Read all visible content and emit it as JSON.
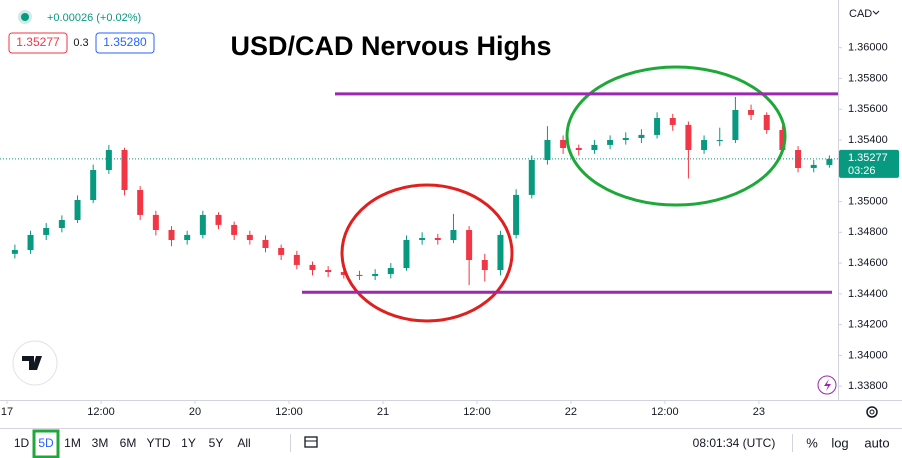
{
  "chart_data": {
    "type": "candlestick",
    "title": "USD/CAD Nervous Highs",
    "x": [
      1,
      3,
      5,
      7,
      9,
      11,
      13,
      15,
      17,
      19,
      21,
      23,
      25,
      27,
      29,
      31,
      33,
      35,
      37,
      39,
      41,
      43,
      45,
      47,
      49,
      51,
      53,
      55,
      57,
      59,
      61,
      63,
      65,
      67,
      69,
      71,
      73,
      75,
      77,
      79,
      81,
      83,
      85,
      87,
      89,
      91,
      93,
      95,
      97,
      99,
      101,
      103,
      105
    ],
    "open": [
      1.3466,
      1.34685,
      1.34783,
      1.34828,
      1.3488,
      1.3501,
      1.35205,
      1.35335,
      1.35075,
      1.34913,
      1.34815,
      1.3475,
      1.34783,
      1.34913,
      1.34848,
      1.34783,
      1.3475,
      1.34698,
      1.34653,
      1.34588,
      1.34555,
      1.34542,
      1.34523,
      1.34516,
      1.34529,
      1.34568,
      1.3475,
      1.34763,
      1.3475,
      1.34815,
      1.3462,
      1.34555,
      1.34783,
      1.35043,
      1.3527,
      1.354,
      1.35348,
      1.35335,
      1.35368,
      1.354,
      1.35413,
      1.35433,
      1.35543,
      1.35498,
      1.35335,
      1.354,
      1.354,
      1.35595,
      1.35563,
      1.35465,
      1.35335,
      1.35218,
      1.35238
    ],
    "high": [
      1.3472,
      1.3481,
      1.3486,
      1.3491,
      1.3504,
      1.3524,
      1.35368,
      1.3535,
      1.351,
      1.3494,
      1.3484,
      1.3481,
      1.3494,
      1.3493,
      1.3487,
      1.3481,
      1.3478,
      1.3472,
      1.3468,
      1.3461,
      1.3458,
      1.3457,
      1.3455,
      1.3456,
      1.346,
      1.3478,
      1.348,
      1.3479,
      1.3492,
      1.3484,
      1.3466,
      1.3481,
      1.3508,
      1.353,
      1.3549,
      1.3543,
      1.3537,
      1.354,
      1.3543,
      1.3545,
      1.3547,
      1.3558,
      1.3557,
      1.3552,
      1.3543,
      1.3548,
      1.3568,
      1.3563,
      1.3558,
      1.3549,
      1.3536,
      1.3527,
      1.353
    ],
    "low": [
      1.3463,
      1.3466,
      1.3475,
      1.348,
      1.3486,
      1.3499,
      1.3518,
      1.3504,
      1.3488,
      1.3478,
      1.3471,
      1.3472,
      1.3476,
      1.3482,
      1.3475,
      1.3472,
      1.3467,
      1.3462,
      1.3456,
      1.3452,
      1.3451,
      1.345,
      1.3449,
      1.3449,
      1.345,
      1.3455,
      1.3472,
      1.3472,
      1.3473,
      1.34457,
      1.3448,
      1.3452,
      1.3476,
      1.3502,
      1.3524,
      1.3531,
      1.353,
      1.3531,
      1.3534,
      1.3537,
      1.3538,
      1.3541,
      1.3546,
      1.3515,
      1.3531,
      1.3536,
      1.3538,
      1.3553,
      1.3544,
      1.3531,
      1.3519,
      1.3519,
      1.3522
    ],
    "close": [
      1.34685,
      1.34783,
      1.34828,
      1.3488,
      1.3501,
      1.35205,
      1.35335,
      1.35075,
      1.34913,
      1.34815,
      1.3475,
      1.34783,
      1.34913,
      1.34848,
      1.34783,
      1.3475,
      1.34698,
      1.34653,
      1.34588,
      1.34555,
      1.34542,
      1.34523,
      1.34516,
      1.34529,
      1.34568,
      1.3475,
      1.34763,
      1.3475,
      1.34815,
      1.3462,
      1.34555,
      1.34783,
      1.35043,
      1.3527,
      1.354,
      1.35348,
      1.35335,
      1.35368,
      1.354,
      1.35413,
      1.35433,
      1.35543,
      1.35498,
      1.35335,
      1.354,
      1.354,
      1.35595,
      1.35563,
      1.35465,
      1.35335,
      1.35218,
      1.35238,
      1.35277
    ],
    "up_color": "#089981",
    "down_color": "#f23645",
    "levels": [
      1.357,
      1.3441
    ],
    "level_color": "#9c27b0",
    "xlim": [
      -0.9,
      106.1
    ],
    "xticks": [
      {
        "value": 0,
        "label": "17"
      },
      {
        "value": 12,
        "label": "12:00"
      },
      {
        "value": 24,
        "label": "20"
      },
      {
        "value": 36,
        "label": "12:00"
      },
      {
        "value": 48,
        "label": "21"
      },
      {
        "value": 60,
        "label": "12:00"
      },
      {
        "value": 72,
        "label": "22"
      },
      {
        "value": 84,
        "label": "12:00"
      },
      {
        "value": 96,
        "label": "23"
      }
    ],
    "ylim": [
      1.3371,
      1.3631
    ],
    "yticks": [
      {
        "value": 1.36,
        "label": "1.36000"
      },
      {
        "value": 1.358,
        "label": "1.35800"
      },
      {
        "value": 1.356,
        "label": "1.35600"
      },
      {
        "value": 1.354,
        "label": "1.35400"
      },
      {
        "value": 1.352,
        "label": "1.35200"
      },
      {
        "value": 1.35,
        "label": "1.35000"
      },
      {
        "value": 1.348,
        "label": "1.34800"
      },
      {
        "value": 1.346,
        "label": "1.34600"
      },
      {
        "value": 1.344,
        "label": "1.34400"
      },
      {
        "value": 1.342,
        "label": "1.34200"
      },
      {
        "value": 1.34,
        "label": "1.34000"
      },
      {
        "value": 1.338,
        "label": "1.33800"
      }
    ],
    "grid": false
  },
  "ui": {
    "change": "+0.00026 (+0.02%)",
    "spread": "0.3",
    "ask": "1.35280",
    "currency": "CAD",
    "countdown": "03:26",
    "ranges": [
      "1D",
      "5D",
      "1M",
      "3M",
      "6M",
      "YTD",
      "1Y",
      "5Y",
      "All"
    ],
    "active_range": "5D",
    "clock": "08:01:34 (UTC)",
    "percent": "%",
    "log": "log",
    "auto": "auto"
  }
}
